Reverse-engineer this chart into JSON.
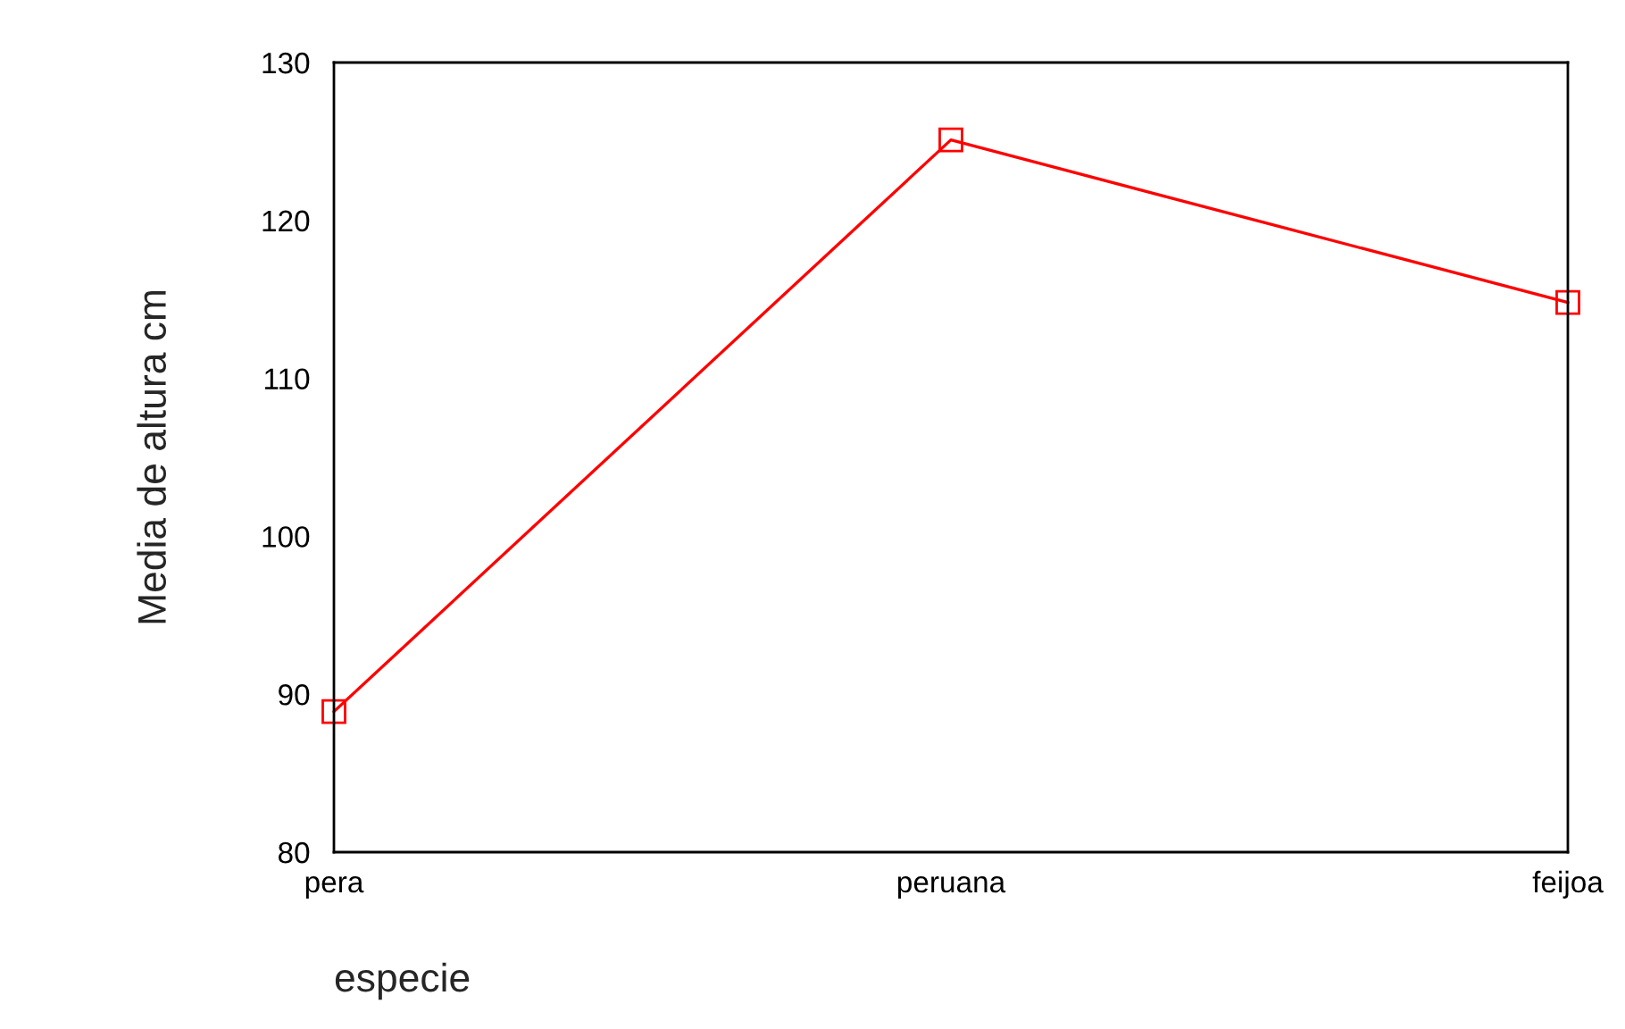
{
  "chart_data": {
    "type": "line",
    "xlabel": "especie",
    "ylabel": "Media de altura cm",
    "categories": [
      "pera",
      "peruana",
      "feijoa"
    ],
    "series": [
      {
        "color": "#ff0000",
        "values": [
          88.9,
          125.1,
          114.8
        ]
      }
    ],
    "ylim": [
      80,
      130
    ],
    "yticks": [
      80,
      90,
      100,
      110,
      120,
      130
    ],
    "marker": "square",
    "line_style": "solid",
    "grid": false,
    "legend": false
  }
}
